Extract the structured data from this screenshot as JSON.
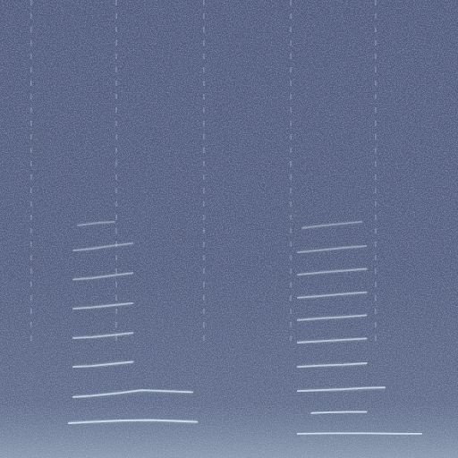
{
  "chart_data": {
    "type": "spectrogram",
    "xlim": [
      0,
      100
    ],
    "ylim": [
      0,
      100
    ],
    "tick_labels": false,
    "color": "#d4e4ef",
    "clicks": [
      6.8,
      25.4,
      44.5,
      63.5,
      82.0
    ],
    "series": [
      {
        "x": [
          15,
          20,
          27,
          33,
          38,
          43
        ],
        "values": [
          7.6,
          7.9,
          8.2,
          8.3,
          8.1,
          7.9
        ]
      },
      {
        "x": [
          16,
          20,
          26,
          31,
          36,
          42
        ],
        "values": [
          13.3,
          13.6,
          14.2,
          14.8,
          14.6,
          14.4
        ]
      },
      {
        "x": [
          16,
          20,
          25,
          29
        ],
        "values": [
          19.9,
          20.1,
          20.6,
          21.0
        ]
      },
      {
        "x": [
          16,
          20,
          25,
          29
        ],
        "values": [
          26.2,
          26.4,
          26.9,
          27.3
        ]
      },
      {
        "x": [
          16,
          20,
          25,
          29
        ],
        "values": [
          32.6,
          32.9,
          33.4,
          33.8
        ]
      },
      {
        "x": [
          16,
          20,
          25,
          29
        ],
        "values": [
          39.0,
          39.3,
          39.9,
          40.4
        ]
      },
      {
        "x": [
          16,
          20,
          25,
          29
        ],
        "values": [
          45.3,
          45.7,
          46.4,
          46.9
        ]
      },
      {
        "x": [
          17,
          21,
          25
        ],
        "values": [
          50.8,
          51.3,
          51.6
        ]
      },
      {
        "x": [
          65,
          72,
          80,
          88,
          92
        ],
        "values": [
          5.3,
          5.4,
          5.4,
          5.3,
          5.3
        ]
      },
      {
        "x": [
          68,
          72,
          76,
          80
        ],
        "values": [
          9.8,
          10.0,
          10.1,
          10.1
        ]
      },
      {
        "x": [
          65,
          70,
          75,
          80,
          84
        ],
        "values": [
          14.6,
          14.8,
          15.0,
          15.3,
          15.4
        ]
      },
      {
        "x": [
          65,
          70,
          75,
          80
        ],
        "values": [
          19.9,
          20.2,
          20.4,
          20.7
        ]
      },
      {
        "x": [
          65,
          70,
          75,
          80
        ],
        "values": [
          25.2,
          25.5,
          25.8,
          26.1
        ]
      },
      {
        "x": [
          65,
          70,
          75,
          80
        ],
        "values": [
          30.1,
          30.5,
          30.8,
          31.2
        ]
      },
      {
        "x": [
          65,
          70,
          75,
          80
        ],
        "values": [
          35.0,
          35.4,
          35.8,
          36.2
        ]
      },
      {
        "x": [
          65,
          70,
          75,
          80
        ],
        "values": [
          40.0,
          40.5,
          40.9,
          41.3
        ]
      },
      {
        "x": [
          65,
          70,
          75,
          80
        ],
        "values": [
          44.9,
          45.4,
          45.9,
          46.3
        ]
      },
      {
        "x": [
          66,
          70,
          75,
          79
        ],
        "values": [
          50.2,
          50.7,
          51.2,
          51.6
        ]
      }
    ]
  }
}
